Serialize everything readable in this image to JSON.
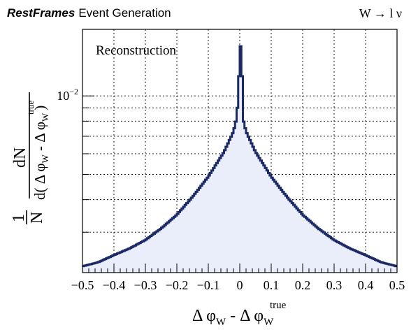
{
  "header": {
    "brand": "RestFrames",
    "title": "Event Generation",
    "process": "W → l ν"
  },
  "chart_data": {
    "type": "histogram",
    "title": "Reconstruction",
    "xlabel": "Δ φ_W - Δ φ_W^true",
    "ylabel": "1/N dN / d( Δ φ_W - Δ φ_W^true )",
    "xlim": [
      -0.5,
      0.5
    ],
    "ylim": [
      0.0021,
      0.018
    ],
    "yscale": "log",
    "grid": true,
    "x_ticks": [
      -0.5,
      -0.4,
      -0.3,
      -0.2,
      -0.1,
      0,
      0.1,
      0.2,
      0.3,
      0.4,
      0.5
    ],
    "x_tick_labels": [
      "−0.5",
      "−0.4",
      "−0.3",
      "−0.2",
      "−0.1",
      "0",
      "0.1",
      "0.2",
      "0.3",
      "0.4",
      "0.5"
    ],
    "y_major_label": "10",
    "y_major_exp": "−2",
    "bins": 200,
    "line_color": "#1b2a66",
    "fill_color": "#eaeefa",
    "peak": 0.0155,
    "near_peak_value": 0.0119,
    "profile": [
      {
        "x": 0.0,
        "y": 0.0119
      },
      {
        "x": 0.01,
        "y": 0.0082
      },
      {
        "x": 0.02,
        "y": 0.0073
      },
      {
        "x": 0.05,
        "y": 0.0061
      },
      {
        "x": 0.1,
        "y": 0.0049
      },
      {
        "x": 0.15,
        "y": 0.0041
      },
      {
        "x": 0.2,
        "y": 0.0035
      },
      {
        "x": 0.25,
        "y": 0.0031
      },
      {
        "x": 0.3,
        "y": 0.0028
      },
      {
        "x": 0.35,
        "y": 0.0026
      },
      {
        "x": 0.4,
        "y": 0.00245
      },
      {
        "x": 0.45,
        "y": 0.0023
      },
      {
        "x": 0.5,
        "y": 0.00222
      }
    ]
  }
}
